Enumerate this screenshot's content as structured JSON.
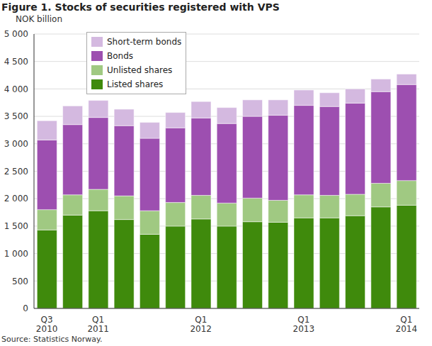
{
  "chart_data": {
    "type": "bar",
    "title": "Figure 1. Stocks of securities registered with VPS",
    "y_label": "NOK billion",
    "source": "Source: Statistics Norway.",
    "stacked": true,
    "grid": true,
    "legend": "upper left",
    "categories": [
      "Q3 2010",
      null,
      "Q1 2011",
      null,
      null,
      null,
      "Q1 2012",
      null,
      null,
      null,
      "Q1 2013",
      null,
      null,
      null,
      "Q1 2014"
    ],
    "series": [
      {
        "name": "Listed shares",
        "color": "#3f8a0c",
        "values": [
          1430,
          1700,
          1780,
          1620,
          1350,
          1500,
          1630,
          1500,
          1580,
          1570,
          1650,
          1650,
          1690,
          1850,
          1880
        ]
      },
      {
        "name": "Unlisted shares",
        "color": "#a0c982",
        "values": [
          370,
          370,
          390,
          430,
          430,
          430,
          430,
          420,
          430,
          400,
          420,
          410,
          390,
          430,
          450
        ]
      },
      {
        "name": "Bonds",
        "color": "#9d4fb0",
        "values": [
          1270,
          1280,
          1310,
          1280,
          1320,
          1360,
          1410,
          1450,
          1490,
          1550,
          1630,
          1620,
          1660,
          1670,
          1750
        ]
      },
      {
        "name": "Short-term bonds",
        "color": "#d4b9e0",
        "values": [
          350,
          340,
          310,
          300,
          290,
          280,
          300,
          290,
          300,
          280,
          280,
          250,
          260,
          230,
          190
        ]
      }
    ],
    "ylim": [
      0,
      5000
    ],
    "yticks": [
      0,
      500,
      {
        "value": 1000,
        "label": "1 000"
      },
      {
        "value": 1500,
        "label": "1 500"
      },
      {
        "value": 2000,
        "label": "2 000"
      },
      {
        "value": 2500,
        "label": "2 500"
      },
      {
        "value": 3000,
        "label": "3 000"
      },
      {
        "value": 3500,
        "label": "3 500"
      },
      {
        "value": 4000,
        "label": "4 000"
      },
      {
        "value": 4500,
        "label": "4 500"
      },
      {
        "value": 5000,
        "label": "5 000"
      }
    ]
  }
}
